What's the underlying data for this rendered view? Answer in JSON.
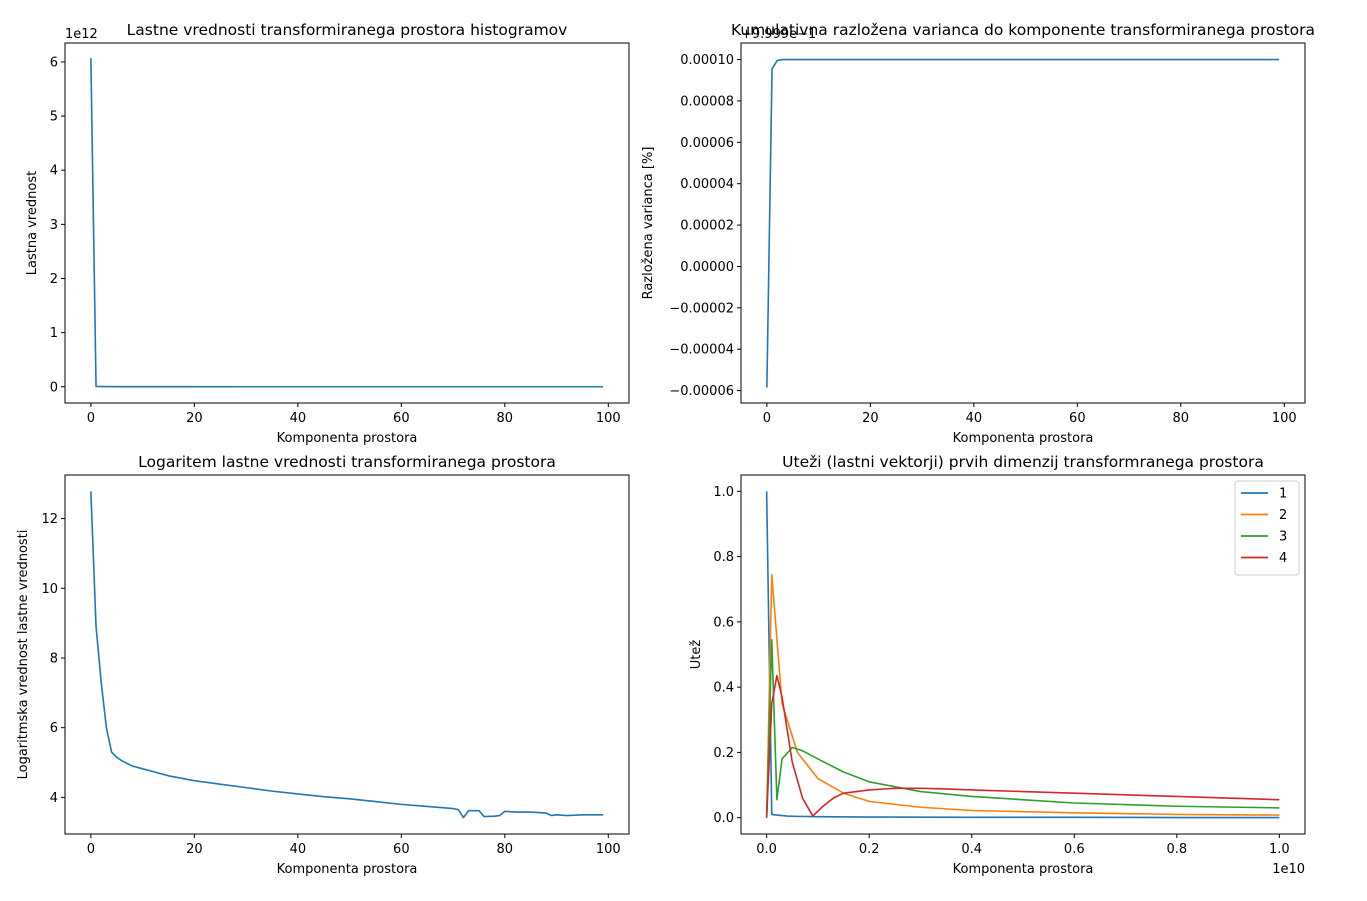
{
  "chart_data": [
    {
      "type": "line",
      "title": "Lastne vrednosti transformiranega prostora histogramov",
      "xlabel": "Komponenta prostora",
      "ylabel": "Lastna vrednost",
      "offset_text": "1e12",
      "xlim": [
        -5,
        104
      ],
      "ylim": [
        -0.3,
        6.35
      ],
      "xticks": [
        0,
        20,
        40,
        60,
        80,
        100
      ],
      "xtick_labels": [
        "0",
        "20",
        "40",
        "60",
        "80",
        "100"
      ],
      "yticks": [
        0,
        1,
        2,
        3,
        4,
        5,
        6
      ],
      "ytick_labels": [
        "0",
        "1",
        "2",
        "3",
        "4",
        "5",
        "6"
      ],
      "legend": null,
      "series": [
        {
          "color": "#1f77b4",
          "x": [
            0,
            1,
            2,
            5,
            10,
            20,
            30,
            40,
            50,
            60,
            70,
            80,
            90,
            99
          ],
          "y": [
            6.07,
            0.006,
            0.004,
            0.002,
            0.001,
            0.0005,
            0.0003,
            0.0002,
            0.0001,
            0.0001,
            0.0001,
            0.0001,
            0.0001,
            0.0001
          ]
        }
      ]
    },
    {
      "type": "line",
      "title": "Kumulativna razložena varianca do komponente transformiranega prostora",
      "xlabel": "Komponenta prostora",
      "ylabel": "Razložena varianca [%]",
      "offset_text": "+9.999e−1",
      "xlim": [
        -5,
        104
      ],
      "ylim": [
        -6.6e-05,
        0.000108
      ],
      "xticks": [
        0,
        20,
        40,
        60,
        80,
        100
      ],
      "xtick_labels": [
        "0",
        "20",
        "40",
        "60",
        "80",
        "100"
      ],
      "yticks": [
        -6e-05,
        -4e-05,
        -2e-05,
        0.0,
        2e-05,
        4e-05,
        6e-05,
        8e-05,
        0.0001
      ],
      "ytick_labels": [
        "−0.00006",
        "−0.00004",
        "−0.00002",
        "0.00000",
        "0.00002",
        "0.00004",
        "0.00006",
        "0.00008",
        "0.00010"
      ],
      "legend": null,
      "series": [
        {
          "color": "#1f77b4",
          "x": [
            0,
            1,
            2,
            3,
            5,
            10,
            20,
            40,
            60,
            80,
            99
          ],
          "y": [
            -5.85e-05,
            9.55e-05,
            9.95e-05,
            0.0001,
            0.0001,
            0.0001,
            0.0001,
            0.0001,
            0.0001,
            0.0001,
            0.0001
          ]
        }
      ]
    },
    {
      "type": "line",
      "title": "Logaritem lastne vrednosti transformiranega prostora",
      "xlabel": "Komponenta prostora",
      "ylabel": "Logaritmska vrednost lastne vrednosti",
      "offset_text": "",
      "xlim": [
        -5,
        104
      ],
      "ylim": [
        2.95,
        13.25
      ],
      "xticks": [
        0,
        20,
        40,
        60,
        80,
        100
      ],
      "xtick_labels": [
        "0",
        "20",
        "40",
        "60",
        "80",
        "100"
      ],
      "yticks": [
        4,
        6,
        8,
        10,
        12
      ],
      "ytick_labels": [
        "4",
        "6",
        "8",
        "10",
        "12"
      ],
      "legend": null,
      "series": [
        {
          "color": "#1f77b4",
          "x": [
            0,
            1,
            2,
            3,
            4,
            5,
            6,
            8,
            10,
            15,
            20,
            25,
            30,
            35,
            40,
            45,
            50,
            55,
            60,
            65,
            70,
            71,
            72,
            73,
            75,
            76,
            78,
            79,
            80,
            82,
            85,
            88,
            89,
            90,
            92,
            95,
            97,
            99
          ],
          "y": [
            12.78,
            8.9,
            7.3,
            6.0,
            5.3,
            5.15,
            5.05,
            4.9,
            4.82,
            4.62,
            4.48,
            4.38,
            4.28,
            4.18,
            4.1,
            4.02,
            3.96,
            3.88,
            3.8,
            3.74,
            3.68,
            3.65,
            3.42,
            3.62,
            3.62,
            3.45,
            3.46,
            3.48,
            3.6,
            3.58,
            3.58,
            3.55,
            3.48,
            3.5,
            3.48,
            3.5,
            3.5,
            3.5
          ]
        }
      ]
    },
    {
      "type": "line",
      "title": "Uteži (lastni vektorji) prvih dimenzij transformranega prostora",
      "xlabel": "Komponenta prostora",
      "ylabel": "Utež",
      "offset_text": "1e10",
      "xlim": [
        -0.05,
        1.05
      ],
      "ylim": [
        -0.05,
        1.05
      ],
      "xticks": [
        0,
        0.2,
        0.4,
        0.6,
        0.8,
        1.0
      ],
      "xtick_labels": [
        "0.0",
        "0.2",
        "0.4",
        "0.6",
        "0.8",
        "1.0"
      ],
      "yticks": [
        0,
        0.2,
        0.4,
        0.6,
        0.8,
        1.0
      ],
      "ytick_labels": [
        "0.0",
        "0.2",
        "0.4",
        "0.6",
        "0.8",
        "1.0"
      ],
      "legend": "upper right",
      "series": [
        {
          "name": "1",
          "color": "#1f77b4",
          "x": [
            0,
            0.01,
            0.02,
            0.04,
            0.06,
            0.1,
            0.2,
            0.4,
            0.6,
            0.8,
            1.0
          ],
          "y": [
            1.0,
            0.01,
            0.008,
            0.005,
            0.004,
            0.003,
            0.002,
            0.001,
            0.001,
            0.0005,
            0.0005
          ],
          "label": "1"
        },
        {
          "name": "2",
          "color": "#ff7f0e",
          "x": [
            0,
            0.01,
            0.03,
            0.06,
            0.1,
            0.15,
            0.2,
            0.3,
            0.4,
            0.6,
            0.8,
            1.0
          ],
          "y": [
            0.0,
            0.745,
            0.35,
            0.2,
            0.12,
            0.075,
            0.05,
            0.032,
            0.022,
            0.015,
            0.01,
            0.008
          ],
          "label": "2"
        },
        {
          "name": "3",
          "color": "#2ca02c",
          "x": [
            0,
            0.01,
            0.02,
            0.03,
            0.05,
            0.07,
            0.1,
            0.15,
            0.2,
            0.3,
            0.4,
            0.6,
            0.8,
            1.0
          ],
          "y": [
            0.0,
            0.545,
            0.055,
            0.18,
            0.215,
            0.205,
            0.18,
            0.14,
            0.11,
            0.08,
            0.065,
            0.045,
            0.035,
            0.03
          ],
          "label": "3"
        },
        {
          "name": "4",
          "color": "#d62728",
          "x": [
            0,
            0.01,
            0.02,
            0.03,
            0.05,
            0.07,
            0.09,
            0.11,
            0.13,
            0.15,
            0.2,
            0.25,
            0.3,
            0.35,
            0.4,
            0.5,
            0.6,
            0.7,
            0.8,
            0.9,
            1.0
          ],
          "y": [
            0.0,
            0.35,
            0.435,
            0.37,
            0.17,
            0.06,
            0.005,
            0.035,
            0.06,
            0.075,
            0.085,
            0.09,
            0.09,
            0.088,
            0.085,
            0.08,
            0.075,
            0.07,
            0.065,
            0.06,
            0.055
          ],
          "label": "4"
        }
      ]
    }
  ]
}
